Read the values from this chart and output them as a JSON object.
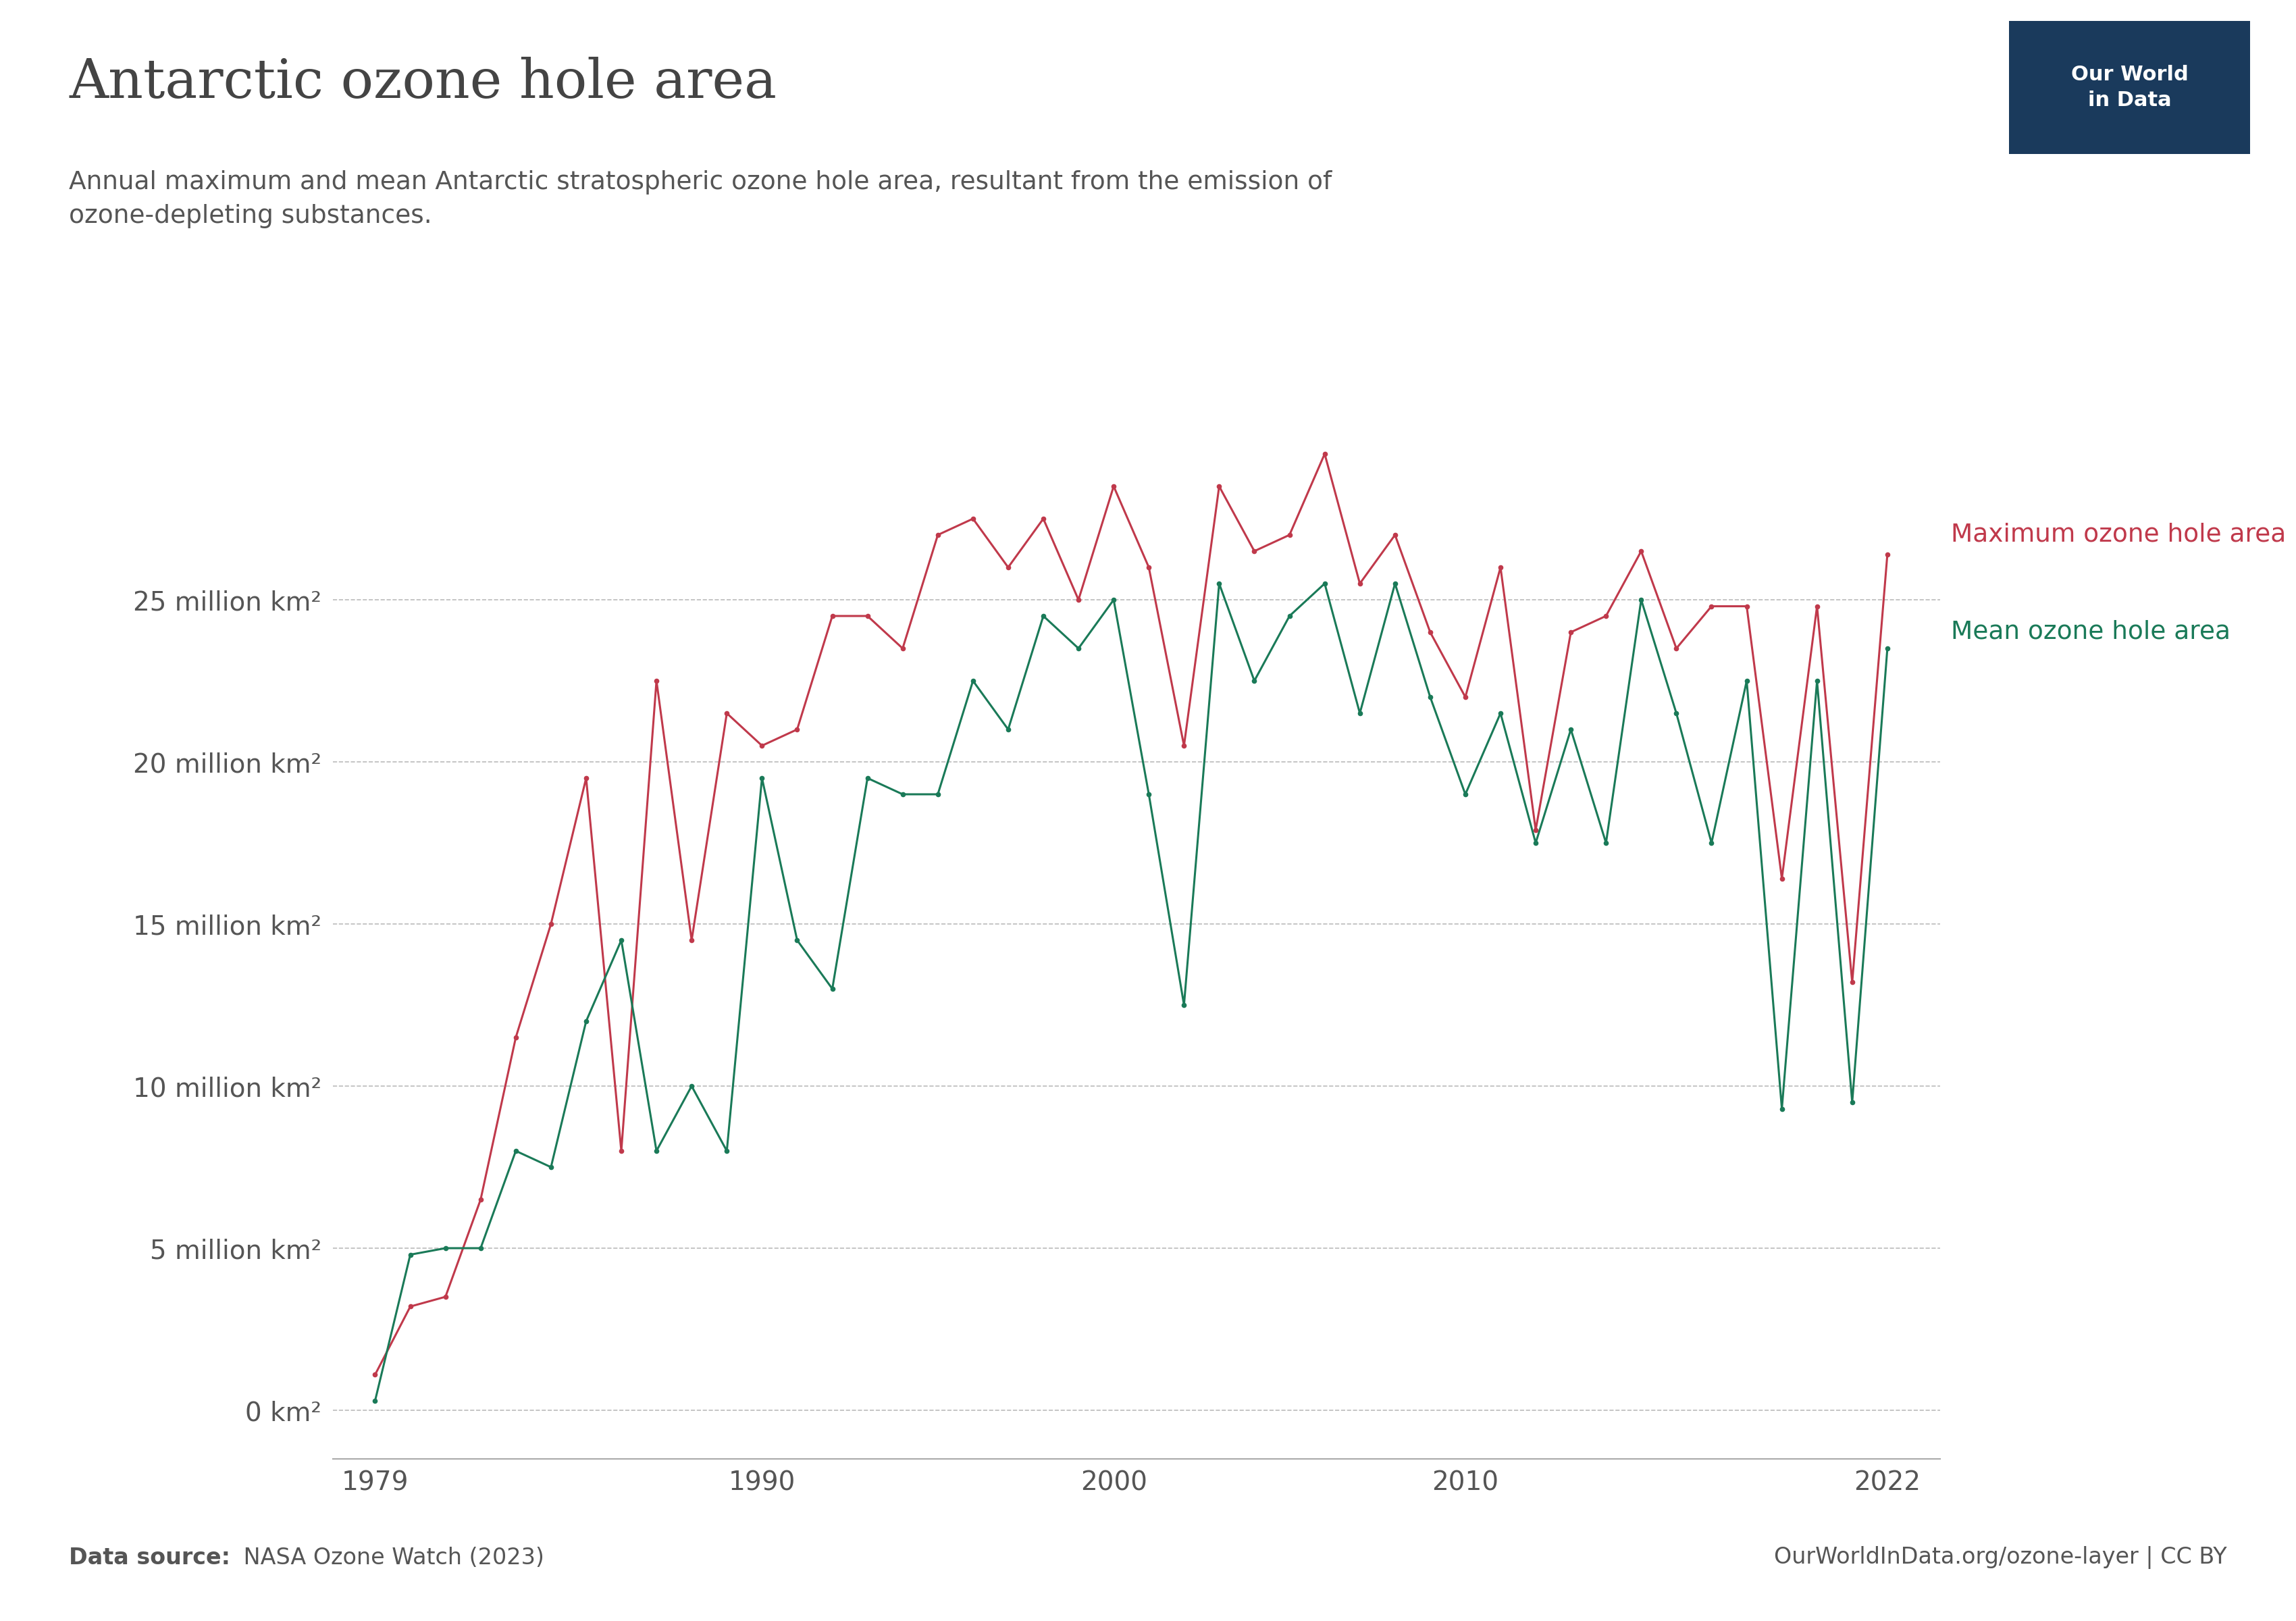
{
  "title": "Antarctic ozone hole area",
  "subtitle": "Annual maximum and mean Antarctic stratospheric ozone hole area, resultant from the emission of\nozone-depleting substances.",
  "source_bold": "Data source:",
  "source_normal": " NASA Ozone Watch (2023)",
  "url_text": "OurWorldInData.org/ozone-layer | CC BY",
  "max_label": "Maximum ozone hole area",
  "mean_label": "Mean ozone hole area",
  "max_color": "#C0394B",
  "mean_color": "#1A7A58",
  "background_color": "#ffffff",
  "grid_color": "#bbbbbb",
  "text_color": "#555555",
  "title_color": "#444444",
  "logo_bg": "#1a3a5c",
  "years": [
    1979,
    1980,
    1981,
    1982,
    1983,
    1984,
    1985,
    1986,
    1987,
    1988,
    1989,
    1990,
    1991,
    1992,
    1993,
    1994,
    1995,
    1996,
    1997,
    1998,
    1999,
    2000,
    2001,
    2002,
    2003,
    2004,
    2005,
    2006,
    2007,
    2008,
    2009,
    2010,
    2011,
    2012,
    2013,
    2014,
    2015,
    2016,
    2017,
    2018,
    2019,
    2020,
    2021,
    2022
  ],
  "max_values": [
    1.1,
    3.2,
    3.5,
    6.5,
    11.5,
    15.0,
    19.5,
    8.0,
    22.5,
    14.5,
    21.5,
    20.5,
    21.0,
    24.5,
    24.5,
    23.5,
    27.0,
    27.5,
    26.0,
    27.5,
    25.0,
    28.5,
    26.0,
    20.5,
    28.5,
    26.5,
    27.0,
    29.5,
    25.5,
    27.0,
    24.0,
    22.0,
    26.0,
    17.9,
    24.0,
    24.5,
    26.5,
    23.5,
    24.8,
    24.8,
    16.4,
    24.8,
    13.2,
    26.4
  ],
  "mean_values": [
    0.3,
    4.8,
    5.0,
    5.0,
    8.0,
    7.5,
    12.0,
    14.5,
    8.0,
    10.0,
    8.0,
    19.5,
    14.5,
    13.0,
    19.5,
    19.0,
    19.0,
    22.5,
    21.0,
    24.5,
    23.5,
    25.0,
    19.0,
    12.5,
    25.5,
    22.5,
    24.5,
    25.5,
    21.5,
    25.5,
    22.0,
    19.0,
    21.5,
    17.5,
    21.0,
    17.5,
    25.0,
    21.5,
    17.5,
    22.5,
    9.3,
    22.5,
    9.5,
    23.5
  ],
  "yticks": [
    0,
    5,
    10,
    15,
    20,
    25
  ],
  "ytick_labels": [
    "0 km²",
    "5 million km²",
    "10 million km²",
    "15 million km²",
    "20 million km²",
    "25 million km²"
  ],
  "xlim_left": 1977.8,
  "xlim_right": 2023.5,
  "ylim_bottom": -1.5,
  "ylim_top": 32,
  "xticks": [
    1979,
    1990,
    2000,
    2010,
    2022
  ]
}
